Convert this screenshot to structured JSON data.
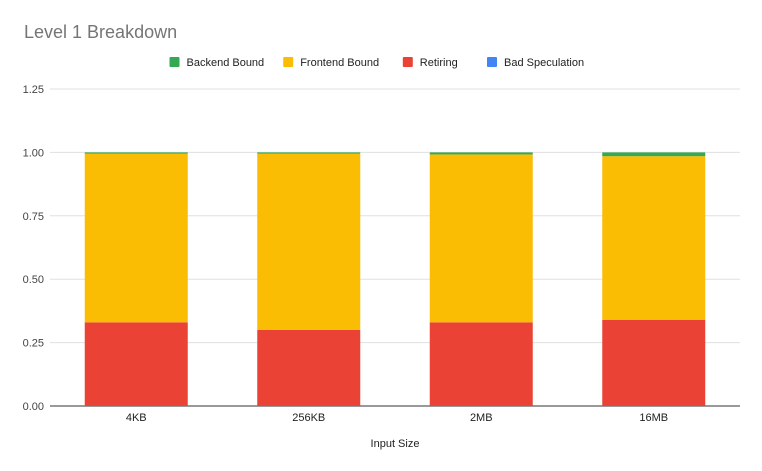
{
  "chart_data": {
    "type": "bar",
    "stacked": true,
    "title": "Level 1 Breakdown",
    "xlabel": "Input Size",
    "ylabel": "",
    "ylim": [
      0,
      1.25
    ],
    "yticks": [
      "0.00",
      "0.25",
      "0.50",
      "0.75",
      "1.00",
      "1.25"
    ],
    "grid": true,
    "legend_position": "top",
    "categories": [
      "4KB",
      "256KB",
      "2MB",
      "16MB"
    ],
    "legend_order": [
      "Backend Bound",
      "Frontend Bound",
      "Retiring",
      "Bad Speculation"
    ],
    "series": [
      {
        "name": "Retiring",
        "color": "#ea4335",
        "values": [
          0.33,
          0.3,
          0.33,
          0.34
        ]
      },
      {
        "name": "Frontend Bound",
        "color": "#fbbc04",
        "values": [
          0.665,
          0.695,
          0.662,
          0.645
        ]
      },
      {
        "name": "Backend Bound",
        "color": "#34a853",
        "values": [
          0.005,
          0.005,
          0.008,
          0.015
        ]
      },
      {
        "name": "Bad Speculation",
        "color": "#4285f4",
        "values": [
          0.0,
          0.0,
          0.0,
          0.0
        ]
      }
    ]
  }
}
